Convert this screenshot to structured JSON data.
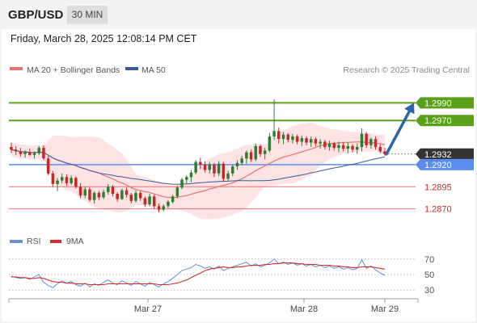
{
  "header": {
    "symbol": "GBP/USD",
    "timeframe": "30 MIN",
    "timestamp": "Friday, March 28, 2025 12:08:14 PM CET"
  },
  "legend": {
    "ma20_label": "MA 20 + Bollinger Bands",
    "ma50_label": "MA 50",
    "credit": "Research © 2025 Trading Central",
    "rsi_label": "RSI",
    "rsi_ma_label": "9MA"
  },
  "colors": {
    "bull": "#2e7d32",
    "bear": "#c62828",
    "ma20": "#e57373",
    "ma50": "#3b5998",
    "bollinger_fill": "#fde3e3",
    "resistance": "#5aa019",
    "support": "#5b8def",
    "minor_support": "#e57373",
    "arrow": "#2e63a8",
    "rsi": "#6b8ed6",
    "rsi_ma": "#d32f2f"
  },
  "chart_data": [
    {
      "type": "candlestick",
      "title": "",
      "x_ticks": [
        "Mar 27",
        "Mar 28",
        "Mar 29"
      ],
      "ylim": [
        1.2855,
        1.3015
      ],
      "levels": [
        {
          "value": 1.299,
          "label": "1.2990",
          "kind": "resistance"
        },
        {
          "value": 1.297,
          "label": "1.2970",
          "kind": "resistance"
        },
        {
          "value": 1.2932,
          "label": "1.2932",
          "kind": "current"
        },
        {
          "value": 1.292,
          "label": "1.2920",
          "kind": "support"
        },
        {
          "value": 1.2895,
          "label": "1.2895",
          "kind": "minor_support"
        },
        {
          "value": 1.287,
          "label": "1.2870",
          "kind": "minor_support"
        }
      ],
      "forecast": {
        "from": 1.2932,
        "to": 1.299
      },
      "candles": [
        [
          1.294,
          1.2945,
          1.2933,
          1.2937
        ],
        [
          1.2937,
          1.2941,
          1.2931,
          1.2935
        ],
        [
          1.2935,
          1.2939,
          1.2929,
          1.2932
        ],
        [
          1.2932,
          1.2936,
          1.2928,
          1.2934
        ],
        [
          1.2934,
          1.2938,
          1.293,
          1.2931
        ],
        [
          1.2931,
          1.2935,
          1.2927,
          1.2933
        ],
        [
          1.2933,
          1.2941,
          1.2931,
          1.2939
        ],
        [
          1.2939,
          1.2942,
          1.2925,
          1.2927
        ],
        [
          1.2927,
          1.293,
          1.2908,
          1.291
        ],
        [
          1.291,
          1.2913,
          1.2895,
          1.2898
        ],
        [
          1.2898,
          1.2905,
          1.289,
          1.2902
        ],
        [
          1.2902,
          1.291,
          1.2899,
          1.2906
        ],
        [
          1.2906,
          1.2909,
          1.2896,
          1.2899
        ],
        [
          1.2899,
          1.2908,
          1.2897,
          1.2905
        ],
        [
          1.2905,
          1.2907,
          1.2893,
          1.2895
        ],
        [
          1.2895,
          1.2899,
          1.2882,
          1.2885
        ],
        [
          1.2885,
          1.2895,
          1.2882,
          1.2892
        ],
        [
          1.2892,
          1.2894,
          1.2878,
          1.288
        ],
        [
          1.288,
          1.289,
          1.2876,
          1.2888
        ],
        [
          1.2888,
          1.289,
          1.288,
          1.2883
        ],
        [
          1.2883,
          1.2892,
          1.2881,
          1.2889
        ],
        [
          1.2889,
          1.2898,
          1.2886,
          1.2895
        ],
        [
          1.2895,
          1.2897,
          1.2884,
          1.2887
        ],
        [
          1.2887,
          1.2889,
          1.2878,
          1.2881
        ],
        [
          1.2881,
          1.2893,
          1.288,
          1.2891
        ],
        [
          1.2891,
          1.2894,
          1.2883,
          1.2886
        ],
        [
          1.2886,
          1.2888,
          1.2876,
          1.2879
        ],
        [
          1.2879,
          1.2891,
          1.2877,
          1.2888
        ],
        [
          1.2888,
          1.289,
          1.2879,
          1.2882
        ],
        [
          1.2882,
          1.2884,
          1.2872,
          1.2875
        ],
        [
          1.2875,
          1.2887,
          1.2873,
          1.2884
        ],
        [
          1.2884,
          1.2886,
          1.287,
          1.2873
        ],
        [
          1.2873,
          1.2876,
          1.2866,
          1.2869
        ],
        [
          1.2869,
          1.2875,
          1.2867,
          1.2873
        ],
        [
          1.2873,
          1.288,
          1.2871,
          1.2878
        ],
        [
          1.2878,
          1.2886,
          1.2876,
          1.2884
        ],
        [
          1.2884,
          1.2896,
          1.2882,
          1.2894
        ],
        [
          1.2894,
          1.2905,
          1.2892,
          1.2903
        ],
        [
          1.2903,
          1.2908,
          1.2898,
          1.2906
        ],
        [
          1.2906,
          1.2914,
          1.29,
          1.2911
        ],
        [
          1.2911,
          1.2925,
          1.2909,
          1.2923
        ],
        [
          1.2923,
          1.2928,
          1.2915,
          1.292
        ],
        [
          1.292,
          1.2924,
          1.2911,
          1.2914
        ],
        [
          1.2914,
          1.2923,
          1.291,
          1.292
        ],
        [
          1.292,
          1.2922,
          1.2906,
          1.291
        ],
        [
          1.291,
          1.2924,
          1.2907,
          1.2921
        ],
        [
          1.2921,
          1.2923,
          1.2901,
          1.2904
        ],
        [
          1.2904,
          1.2913,
          1.2901,
          1.291
        ],
        [
          1.291,
          1.292,
          1.2907,
          1.2918
        ],
        [
          1.2918,
          1.2925,
          1.2914,
          1.2922
        ],
        [
          1.2922,
          1.293,
          1.2919,
          1.2927
        ],
        [
          1.2927,
          1.2936,
          1.2921,
          1.2934
        ],
        [
          1.2934,
          1.2937,
          1.2923,
          1.2926
        ],
        [
          1.2926,
          1.2944,
          1.2924,
          1.2941
        ],
        [
          1.2941,
          1.2943,
          1.2929,
          1.2932
        ],
        [
          1.2932,
          1.2939,
          1.2926,
          1.2936
        ],
        [
          1.2936,
          1.2956,
          1.2934,
          1.2952
        ],
        [
          1.2952,
          1.2994,
          1.2948,
          1.2958
        ],
        [
          1.2958,
          1.2962,
          1.2944,
          1.2949
        ],
        [
          1.2949,
          1.2957,
          1.2943,
          1.2954
        ],
        [
          1.2954,
          1.2956,
          1.2945,
          1.2948
        ],
        [
          1.2948,
          1.2955,
          1.2944,
          1.2952
        ],
        [
          1.2952,
          1.2954,
          1.2943,
          1.2946
        ],
        [
          1.2946,
          1.2953,
          1.2941,
          1.295
        ],
        [
          1.295,
          1.2952,
          1.2942,
          1.2945
        ],
        [
          1.2945,
          1.2952,
          1.294,
          1.2949
        ],
        [
          1.2949,
          1.2951,
          1.2941,
          1.2944
        ],
        [
          1.2944,
          1.2949,
          1.2938,
          1.2946
        ],
        [
          1.2946,
          1.2948,
          1.2937,
          1.294
        ],
        [
          1.294,
          1.2947,
          1.2936,
          1.2944
        ],
        [
          1.2944,
          1.2946,
          1.2936,
          1.2939
        ],
        [
          1.2939,
          1.2946,
          1.2934,
          1.2942
        ],
        [
          1.2942,
          1.2945,
          1.2935,
          1.2938
        ],
        [
          1.2938,
          1.2945,
          1.2933,
          1.2941
        ],
        [
          1.2941,
          1.2943,
          1.2934,
          1.2937
        ],
        [
          1.2937,
          1.2944,
          1.2932,
          1.294
        ],
        [
          1.294,
          1.2961,
          1.2935,
          1.2955
        ],
        [
          1.2955,
          1.2957,
          1.2939,
          1.2942
        ],
        [
          1.2942,
          1.2951,
          1.2938,
          1.2949
        ],
        [
          1.2949,
          1.2952,
          1.2937,
          1.294
        ],
        [
          1.294,
          1.2943,
          1.2933,
          1.2935
        ],
        [
          1.2935,
          1.2939,
          1.293,
          1.2932
        ]
      ]
    },
    {
      "type": "line",
      "title": "",
      "yticks": [
        30,
        50,
        70
      ],
      "ylim": [
        25,
        75
      ],
      "series": [
        {
          "name": "RSI",
          "values": [
            48,
            46,
            45,
            46,
            44,
            47,
            50,
            40,
            36,
            33,
            38,
            42,
            39,
            41,
            37,
            35,
            39,
            34,
            38,
            36,
            40,
            43,
            39,
            37,
            42,
            39,
            36,
            41,
            38,
            35,
            40,
            37,
            34,
            38,
            41,
            45,
            50,
            55,
            57,
            59,
            63,
            61,
            58,
            60,
            57,
            61,
            55,
            58,
            60,
            62,
            64,
            66,
            61,
            64,
            60,
            62,
            65,
            70,
            64,
            66,
            63,
            65,
            62,
            64,
            61,
            63,
            60,
            62,
            59,
            61,
            58,
            60,
            57,
            59,
            56,
            58,
            69,
            58,
            61,
            56,
            52,
            49
          ]
        },
        {
          "name": "9MA",
          "values": [
            47,
            47,
            46,
            46,
            45,
            45,
            46,
            45,
            43,
            41,
            40,
            40,
            39,
            39,
            38,
            38,
            38,
            37,
            37,
            37,
            37,
            38,
            38,
            38,
            38,
            38,
            38,
            38,
            38,
            38,
            38,
            38,
            37,
            37,
            37,
            38,
            39,
            41,
            43,
            46,
            49,
            52,
            55,
            57,
            58,
            59,
            60,
            59,
            59,
            60,
            60,
            61,
            62,
            62,
            62,
            63,
            63,
            64,
            64,
            65,
            65,
            65,
            64,
            64,
            63,
            63,
            63,
            62,
            62,
            62,
            61,
            61,
            60,
            60,
            59,
            59,
            60,
            60,
            60,
            59,
            58,
            57
          ]
        }
      ]
    }
  ]
}
